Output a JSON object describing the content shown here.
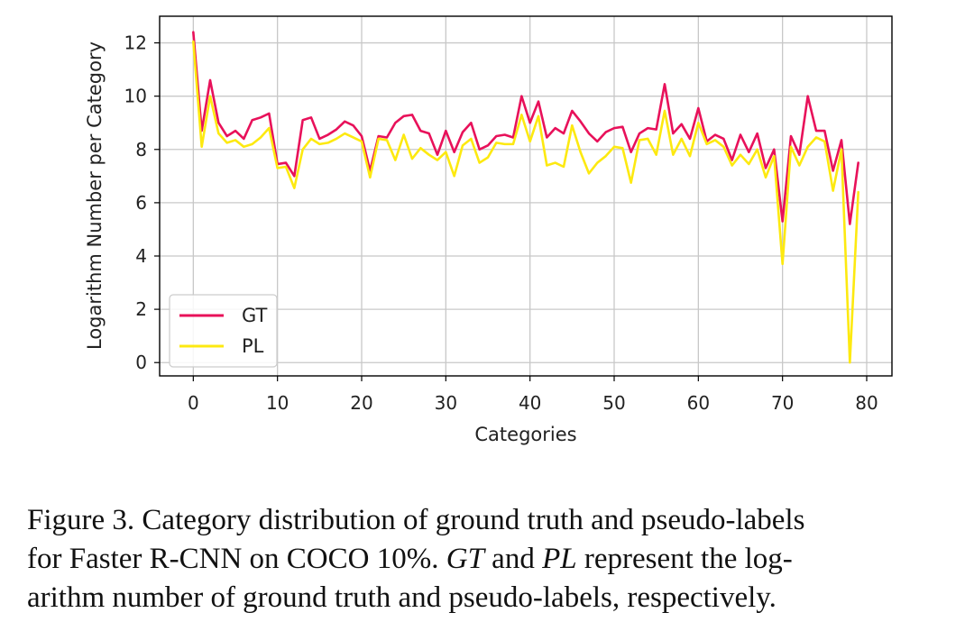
{
  "chart_data": {
    "type": "line",
    "xlabel": "Categories",
    "ylabel": "Logarithm Number per Category",
    "xlim": [
      -4,
      83
    ],
    "ylim": [
      -0.5,
      13
    ],
    "xticks": [
      0,
      10,
      20,
      30,
      40,
      50,
      60,
      70,
      80
    ],
    "yticks": [
      0,
      2,
      4,
      6,
      8,
      10,
      12
    ],
    "grid": true,
    "legend": "lower-left",
    "series": [
      {
        "name": "GT",
        "color": "#e8115a",
        "x": [
          0,
          1,
          2,
          3,
          4,
          5,
          6,
          7,
          8,
          9,
          10,
          11,
          12,
          13,
          14,
          15,
          16,
          17,
          18,
          19,
          20,
          21,
          22,
          23,
          24,
          25,
          26,
          27,
          28,
          29,
          30,
          31,
          32,
          33,
          34,
          35,
          36,
          37,
          38,
          39,
          40,
          41,
          42,
          43,
          44,
          45,
          46,
          47,
          48,
          49,
          50,
          51,
          52,
          53,
          54,
          55,
          56,
          57,
          58,
          59,
          60,
          61,
          62,
          63,
          64,
          65,
          66,
          67,
          68,
          69,
          70,
          71,
          72,
          73,
          74,
          75,
          76,
          77,
          78,
          79
        ],
        "values": [
          12.4,
          8.7,
          10.6,
          9.0,
          8.5,
          8.7,
          8.4,
          9.1,
          9.2,
          9.35,
          7.45,
          7.5,
          7.0,
          9.1,
          9.2,
          8.4,
          8.55,
          8.75,
          9.05,
          8.9,
          8.5,
          7.2,
          8.5,
          8.45,
          9.0,
          9.25,
          9.3,
          8.7,
          8.6,
          7.8,
          8.7,
          7.9,
          8.65,
          9.0,
          8.0,
          8.15,
          8.5,
          8.55,
          8.45,
          10.0,
          9.0,
          9.8,
          8.45,
          8.8,
          8.6,
          9.45,
          9.05,
          8.6,
          8.3,
          8.65,
          8.8,
          8.85,
          7.9,
          8.6,
          8.8,
          8.75,
          10.45,
          8.6,
          8.95,
          8.4,
          9.55,
          8.3,
          8.55,
          8.4,
          7.6,
          8.55,
          7.9,
          8.6,
          7.3,
          8.0,
          5.3,
          8.5,
          7.8,
          10.0,
          8.7,
          8.7,
          7.2,
          8.35,
          5.2,
          7.5
        ]
      },
      {
        "name": "PL",
        "color": "#fde910",
        "x": [
          0,
          1,
          2,
          3,
          4,
          5,
          6,
          7,
          8,
          9,
          10,
          11,
          12,
          13,
          14,
          15,
          16,
          17,
          18,
          19,
          20,
          21,
          22,
          23,
          24,
          25,
          26,
          27,
          28,
          29,
          30,
          31,
          32,
          33,
          34,
          35,
          36,
          37,
          38,
          39,
          40,
          41,
          42,
          43,
          44,
          45,
          46,
          47,
          48,
          49,
          50,
          51,
          52,
          53,
          54,
          55,
          56,
          57,
          58,
          59,
          60,
          61,
          62,
          63,
          64,
          65,
          66,
          67,
          68,
          69,
          70,
          71,
          72,
          73,
          74,
          75,
          76,
          77,
          78,
          79
        ],
        "values": [
          12.05,
          8.1,
          10.0,
          8.6,
          8.25,
          8.35,
          8.1,
          8.2,
          8.45,
          8.8,
          7.3,
          7.35,
          6.55,
          8.0,
          8.4,
          8.2,
          8.25,
          8.4,
          8.6,
          8.45,
          8.3,
          6.95,
          8.4,
          8.35,
          7.6,
          8.55,
          7.65,
          8.05,
          7.8,
          7.6,
          7.9,
          7.0,
          8.15,
          8.4,
          7.5,
          7.7,
          8.25,
          8.2,
          8.2,
          9.3,
          8.3,
          9.25,
          7.4,
          7.5,
          7.35,
          8.9,
          7.9,
          7.1,
          7.5,
          7.75,
          8.1,
          8.05,
          6.75,
          8.35,
          8.4,
          7.8,
          9.45,
          7.8,
          8.4,
          7.75,
          9.0,
          8.2,
          8.35,
          8.1,
          7.4,
          7.8,
          7.45,
          8.0,
          6.95,
          7.75,
          3.7,
          8.1,
          7.4,
          8.1,
          8.45,
          8.3,
          6.45,
          8.0,
          0.0,
          6.4
        ]
      }
    ]
  },
  "caption": {
    "line1": "Figure 3. Category distribution of ground truth and pseudo-labels",
    "line2_a": "for Faster R-CNN on COCO 10%.",
    "line2_gt": "GT",
    "line2_b": "and",
    "line2_pl": "PL",
    "line2_c": "represent the log-",
    "line3": "arithm number of ground truth and pseudo-labels, respectively."
  }
}
